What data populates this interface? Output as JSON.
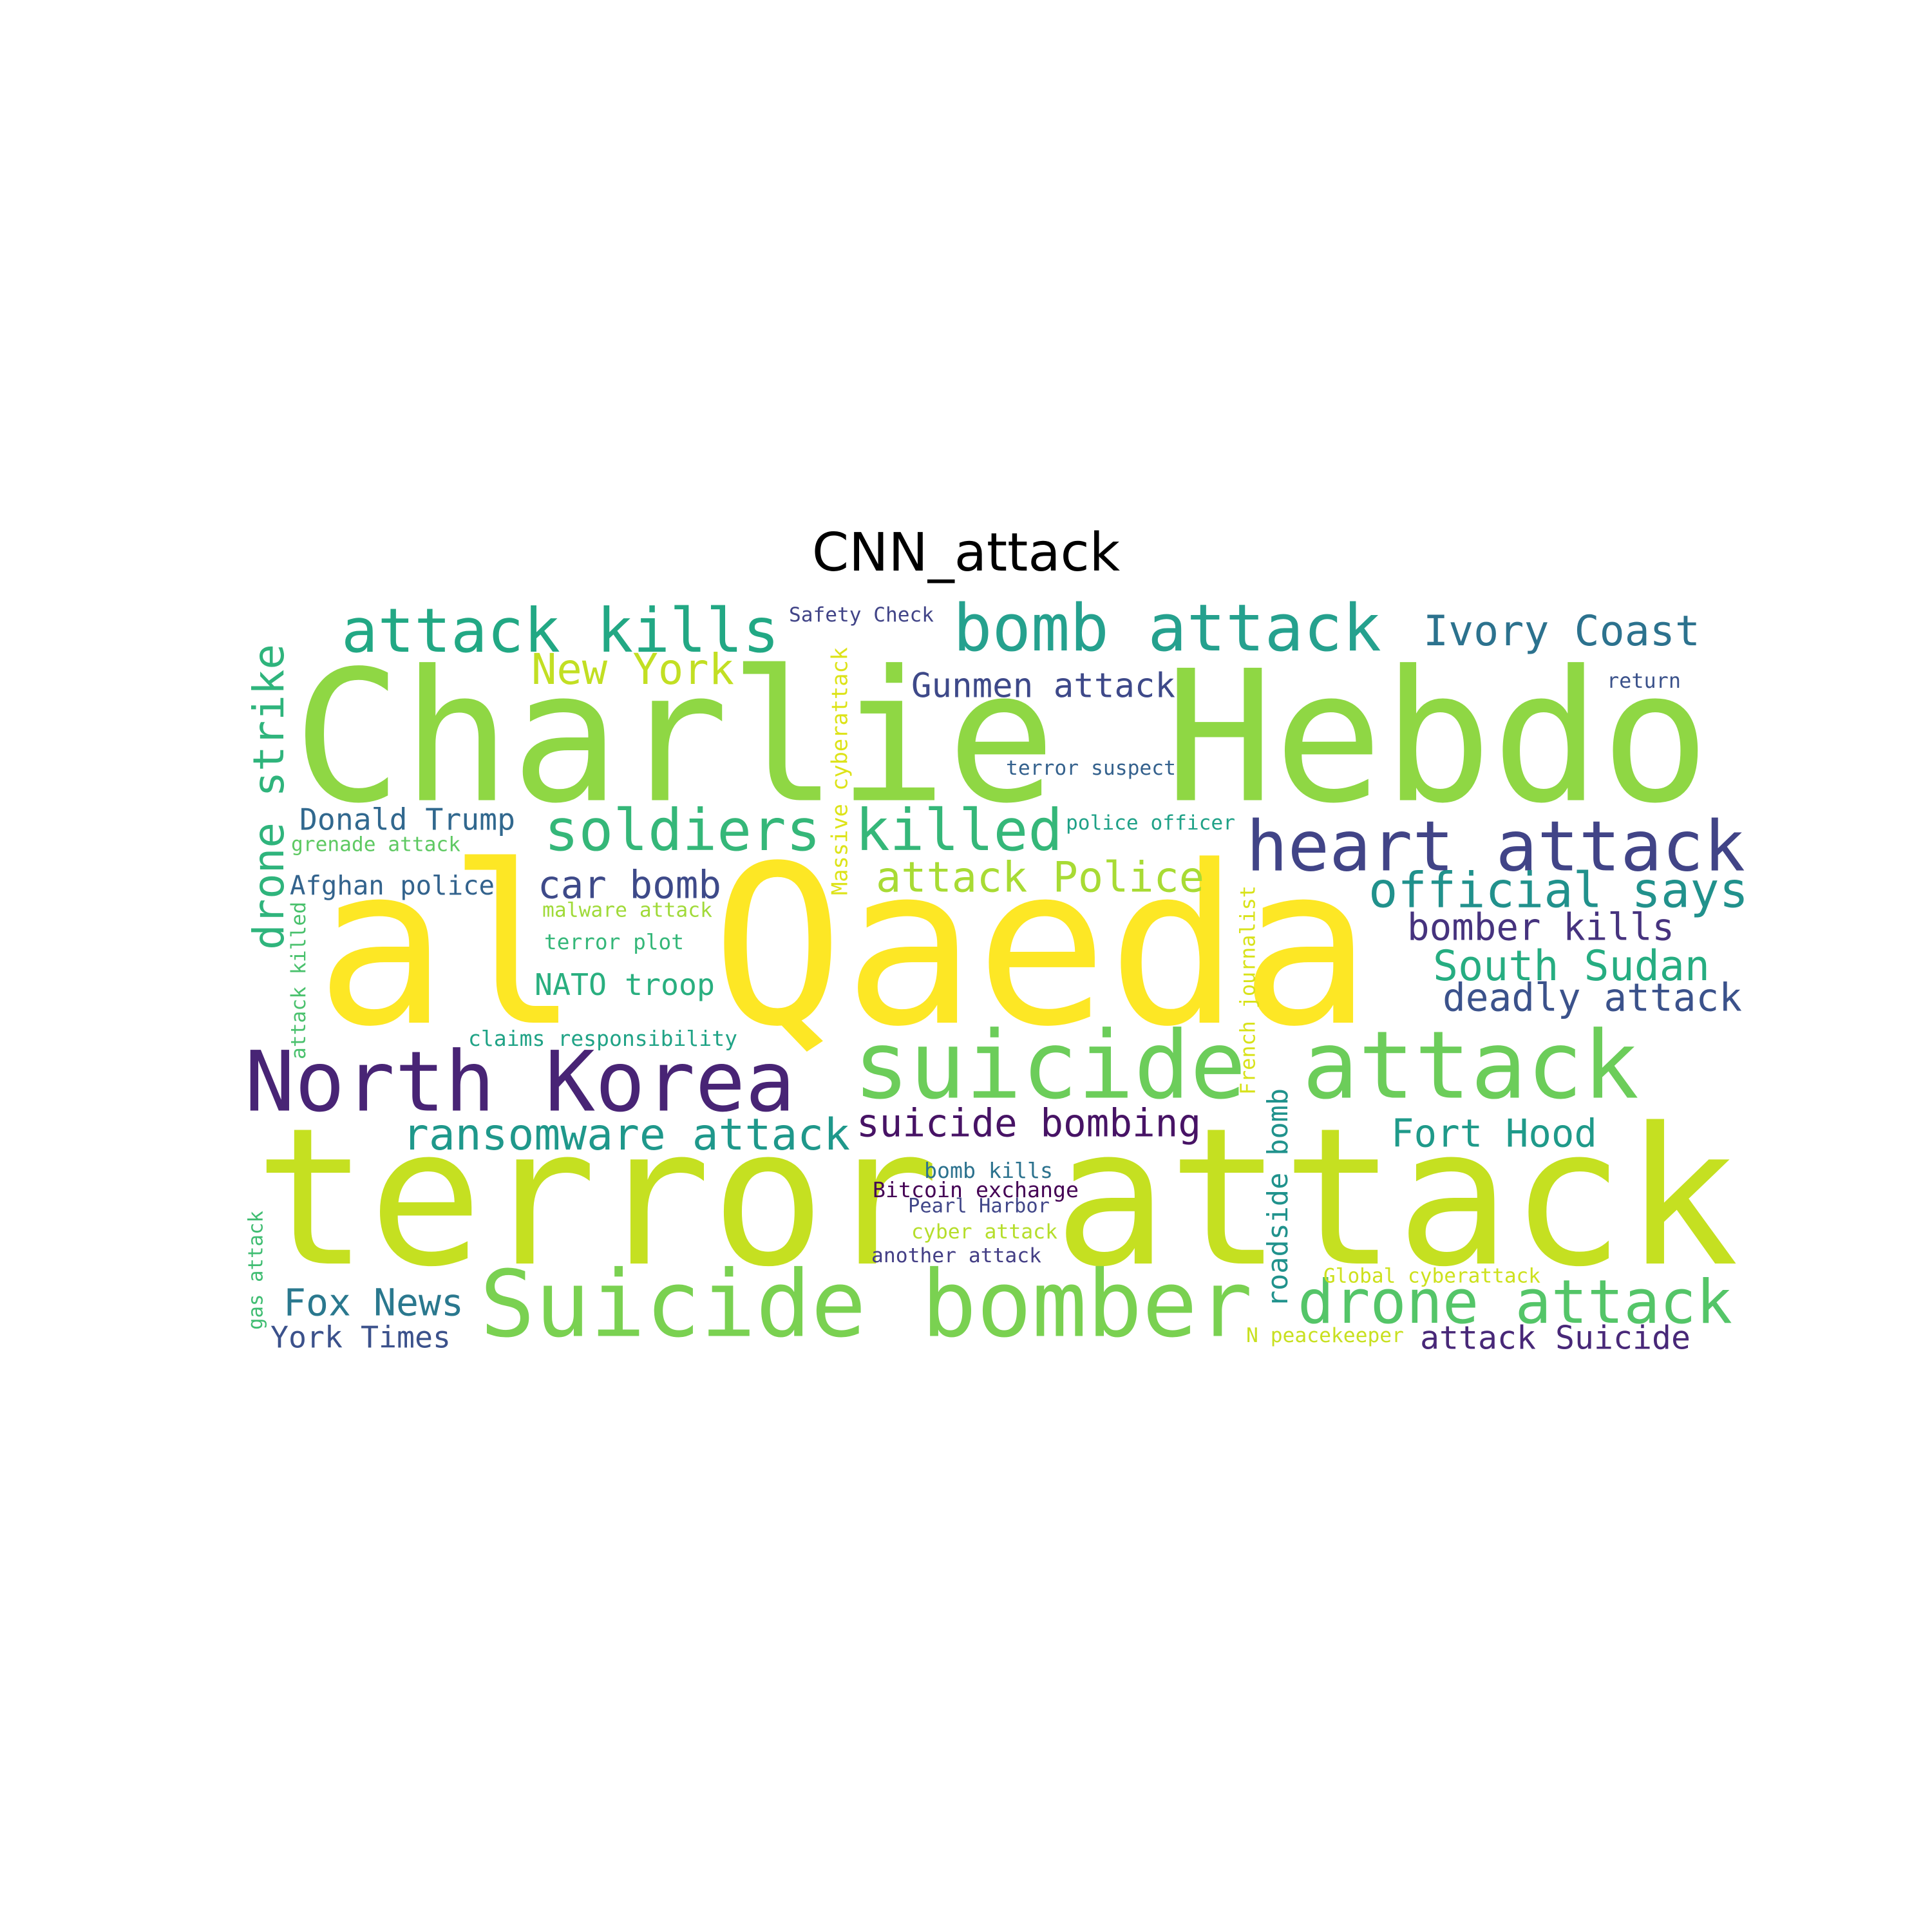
{
  "title": "CNN_attack",
  "words": [
    {
      "text": "terror attack",
      "color": "#c5e021",
      "orientation": "horizontal"
    },
    {
      "text": "al Qaeda",
      "color": "#fde725",
      "orientation": "horizontal"
    },
    {
      "text": "Charlie Hebdo",
      "color": "#8fd744",
      "orientation": "horizontal"
    },
    {
      "text": "suicide attack",
      "color": "#6ccd5a",
      "orientation": "horizontal"
    },
    {
      "text": "Suicide bomber",
      "color": "#7ad151",
      "orientation": "horizontal"
    },
    {
      "text": "North Korea",
      "color": "#482475",
      "orientation": "horizontal"
    },
    {
      "text": "heart attack",
      "color": "#414487",
      "orientation": "horizontal"
    },
    {
      "text": "bomb attack",
      "color": "#25a18e",
      "orientation": "horizontal"
    },
    {
      "text": "attack kills",
      "color": "#22a884",
      "orientation": "horizontal"
    },
    {
      "text": "soldiers killed",
      "color": "#35b779",
      "orientation": "horizontal"
    },
    {
      "text": "drone attack",
      "color": "#54c568",
      "orientation": "horizontal"
    },
    {
      "text": "official says",
      "color": "#21918c",
      "orientation": "horizontal"
    },
    {
      "text": "drone strike",
      "color": "#2fb47c",
      "orientation": "vertical"
    },
    {
      "text": "Ivory Coast",
      "color": "#2c728e",
      "orientation": "horizontal"
    },
    {
      "text": "ransomware attack",
      "color": "#1f988b",
      "orientation": "horizontal"
    },
    {
      "text": "New York",
      "color": "#c2df23",
      "orientation": "horizontal"
    },
    {
      "text": "attack Police",
      "color": "#a8db34",
      "orientation": "horizontal"
    },
    {
      "text": "suicide bombing",
      "color": "#471365",
      "orientation": "horizontal"
    },
    {
      "text": "South Sudan",
      "color": "#26ad81",
      "orientation": "horizontal"
    },
    {
      "text": "deadly attack",
      "color": "#3b528b",
      "orientation": "horizontal"
    },
    {
      "text": "car bomb",
      "color": "#3e4a89",
      "orientation": "horizontal"
    },
    {
      "text": "bomber kills",
      "color": "#46337e",
      "orientation": "horizontal"
    },
    {
      "text": "Fort Hood",
      "color": "#1f9a8a",
      "orientation": "horizontal"
    },
    {
      "text": "Fox News",
      "color": "#2a788e",
      "orientation": "horizontal"
    },
    {
      "text": "Gunmen attack",
      "color": "#3e4989",
      "orientation": "horizontal"
    },
    {
      "text": "NATO troop",
      "color": "#29af7f",
      "orientation": "horizontal"
    },
    {
      "text": "Donald Trump",
      "color": "#31688e",
      "orientation": "horizontal"
    },
    {
      "text": "attack Suicide",
      "color": "#482878",
      "orientation": "horizontal"
    },
    {
      "text": "roadside bomb",
      "color": "#20928c",
      "orientation": "vertical"
    },
    {
      "text": "York Times",
      "color": "#3b518b",
      "orientation": "horizontal"
    },
    {
      "text": "Afghan police",
      "color": "#33638d",
      "orientation": "horizontal"
    },
    {
      "text": "Massive cyberattack",
      "color": "#dde318",
      "orientation": "vertical"
    },
    {
      "text": "French journalist",
      "color": "#d8e219",
      "orientation": "vertical"
    },
    {
      "text": "terror plot",
      "color": "#35b779",
      "orientation": "horizontal"
    },
    {
      "text": "claims responsibility",
      "color": "#20a386",
      "orientation": "horizontal"
    },
    {
      "text": "Bitcoin exchange",
      "color": "#440154",
      "orientation": "horizontal"
    },
    {
      "text": "bomb kills",
      "color": "#2c728e",
      "orientation": "horizontal"
    },
    {
      "text": "terror suspect",
      "color": "#34618d",
      "orientation": "horizontal"
    },
    {
      "text": "police officer",
      "color": "#1fa187",
      "orientation": "horizontal"
    },
    {
      "text": "Safety Check",
      "color": "#414487",
      "orientation": "horizontal"
    },
    {
      "text": "return",
      "color": "#3b528b",
      "orientation": "horizontal"
    },
    {
      "text": "Pearl Harbor",
      "color": "#404688",
      "orientation": "horizontal"
    },
    {
      "text": "another attack",
      "color": "#433e85",
      "orientation": "horizontal"
    },
    {
      "text": "cyber attack",
      "color": "#b5de2b",
      "orientation": "horizontal"
    },
    {
      "text": "malware attack",
      "color": "#a0da39",
      "orientation": "horizontal"
    },
    {
      "text": "grenade attack",
      "color": "#5ec962",
      "orientation": "horizontal"
    },
    {
      "text": "attack killed",
      "color": "#4ac16d",
      "orientation": "vertical"
    },
    {
      "text": "gas attack",
      "color": "#40bd72",
      "orientation": "vertical"
    },
    {
      "text": "Global cyberattack",
      "color": "#cde11d",
      "orientation": "horizontal"
    },
    {
      "text": "N peacekeeper",
      "color": "#c8e020",
      "orientation": "horizontal"
    }
  ]
}
